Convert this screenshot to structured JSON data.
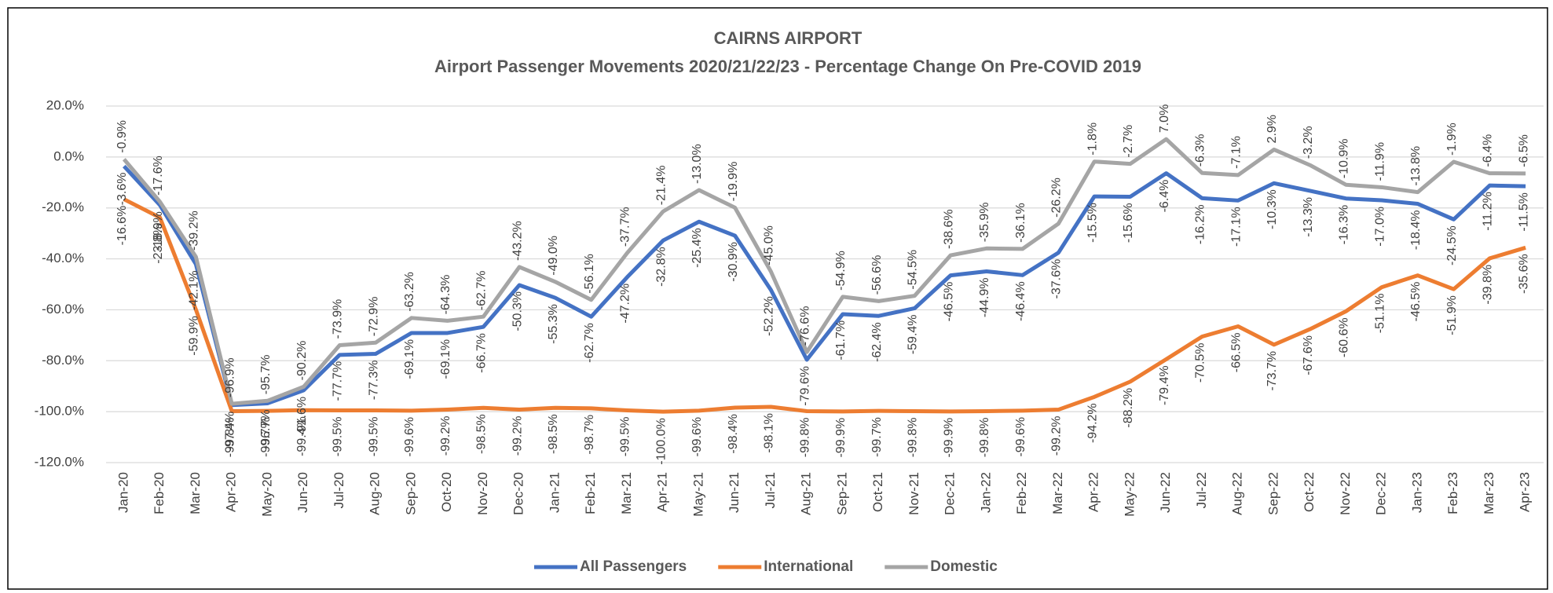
{
  "chart_data": {
    "type": "line",
    "title": "CAIRNS AIRPORT",
    "subtitle": "Airport Passenger Movements 2020/21/22/23 - Percentage Change On Pre-COVID 2019",
    "categories": [
      "Jan-20",
      "Feb-20",
      "Mar-20",
      "Apr-20",
      "May-20",
      "Jun-20",
      "Jul-20",
      "Aug-20",
      "Sep-20",
      "Oct-20",
      "Nov-20",
      "Dec-20",
      "Jan-21",
      "Feb-21",
      "Mar-21",
      "Apr-21",
      "May-21",
      "Jun-21",
      "Jul-21",
      "Aug-21",
      "Sep-21",
      "Oct-21",
      "Nov-21",
      "Dec-21",
      "Jan-22",
      "Feb-22",
      "Mar-22",
      "Apr-22",
      "May-22",
      "Jun-22",
      "Jul-22",
      "Aug-22",
      "Sep-22",
      "Oct-22",
      "Nov-22",
      "Dec-22",
      "Jan-23",
      "Feb-23",
      "Mar-23",
      "Apr-23"
    ],
    "series": [
      {
        "name": "All Passengers",
        "color": "#4472c4",
        "values": [
          -3.6,
          -18.9,
          -42.1,
          -97.4,
          -96.7,
          -91.6,
          -77.7,
          -77.3,
          -69.1,
          -69.1,
          -66.7,
          -50.3,
          -55.3,
          -62.7,
          -47.2,
          -32.8,
          -25.4,
          -30.9,
          -52.2,
          -79.6,
          -61.7,
          -62.4,
          -59.4,
          -46.5,
          -44.9,
          -46.4,
          -37.6,
          -15.5,
          -15.6,
          -6.4,
          -16.2,
          -17.1,
          -10.3,
          -13.3,
          -16.3,
          -17.0,
          -18.4,
          -24.5,
          -11.2,
          -11.5
        ],
        "value_labels": [
          "-3.6%",
          "-18.9%",
          "-42.1%",
          "-97.4%",
          "-96.7%",
          "-91.6%",
          "-77.7%",
          "-77.3%",
          "-69.1%",
          "-69.1%",
          "-66.7%",
          "-50.3%",
          "-55.3%",
          "-62.7%",
          "-47.2%",
          "-32.8%",
          "-25.4%",
          "-30.9%",
          "-52.2%",
          "-79.6%",
          "-61.7%",
          "-62.4%",
          "-59.4%",
          "-46.5%",
          "-44.9%",
          "-46.4%",
          "-37.6%",
          "-15.5%",
          "-15.6%",
          "-6.4%",
          "-16.2%",
          "-17.1%",
          "-10.3%",
          "-13.3%",
          "-16.3%",
          "-17.0%",
          "-18.4%",
          "-24.5%",
          "-11.2%",
          "-11.5%"
        ]
      },
      {
        "name": "International",
        "color": "#ed7d31",
        "values": [
          -16.6,
          -23.8,
          -59.9,
          -99.8,
          -99.7,
          -99.4,
          -99.5,
          -99.5,
          -99.6,
          -99.2,
          -98.5,
          -99.2,
          -98.5,
          -98.7,
          -99.5,
          -100.0,
          -99.6,
          -98.4,
          -98.1,
          -99.8,
          -99.9,
          -99.7,
          -99.8,
          -99.9,
          -99.8,
          -99.6,
          -99.2,
          -94.2,
          -88.2,
          -79.4,
          -70.5,
          -66.5,
          -73.7,
          -67.6,
          -60.6,
          -51.1,
          -46.5,
          -51.9,
          -39.8,
          -35.6
        ],
        "value_labels": [
          "-16.6%",
          "-23.8%",
          "-59.9%",
          "-99.8%",
          "-99.7%",
          "-99.4%",
          "-99.5%",
          "-99.5%",
          "-99.6%",
          "-99.2%",
          "-98.5%",
          "-99.2%",
          "-98.5%",
          "-98.7%",
          "-99.5%",
          "-100.0%",
          "-99.6%",
          "-98.4%",
          "-98.1%",
          "-99.8%",
          "-99.9%",
          "-99.7%",
          "-99.8%",
          "-99.9%",
          "-99.8%",
          "-99.6%",
          "-99.2%",
          "-94.2%",
          "-88.2%",
          "-79.4%",
          "-70.5%",
          "-66.5%",
          "-73.7%",
          "-67.6%",
          "-60.6%",
          "-51.1%",
          "-46.5%",
          "-51.9%",
          "-39.8%",
          "-35.6%"
        ]
      },
      {
        "name": "Domestic",
        "color": "#a5a5a5",
        "values": [
          -0.9,
          -17.6,
          -39.2,
          -96.9,
          -95.7,
          -90.2,
          -73.9,
          -72.9,
          -63.2,
          -64.3,
          -62.7,
          -43.2,
          -49.0,
          -56.1,
          -37.7,
          -21.4,
          -13.0,
          -19.9,
          -45.0,
          -76.6,
          -54.9,
          -56.6,
          -54.5,
          -38.6,
          -35.9,
          -36.1,
          -26.2,
          -1.8,
          -2.7,
          7.0,
          -6.3,
          -7.1,
          2.9,
          -3.2,
          -10.9,
          -11.9,
          -13.8,
          -1.9,
          -6.4,
          -6.5
        ],
        "value_labels": [
          "-0.9%",
          "-17.6%",
          "-39.2%",
          "-96.9%",
          "-95.7%",
          "-90.2%",
          "-73.9%",
          "-72.9%",
          "-63.2%",
          "-64.3%",
          "-62.7%",
          "-43.2%",
          "-49.0%",
          "-56.1%",
          "-37.7%",
          "-21.4%",
          "-13.0%",
          "-19.9%",
          "-45.0%",
          "-76.6%",
          "-54.9%",
          "-56.6%",
          "-54.5%",
          "-38.6%",
          "-35.9%",
          "-36.1%",
          "-26.2%",
          "-1.8%",
          "-2.7%",
          "7.0%",
          "-6.3%",
          "-7.1%",
          "2.9%",
          "-3.2%",
          "-10.9%",
          "-11.9%",
          "-13.8%",
          "-1.9%",
          "-6.4%",
          "-6.5%"
        ]
      }
    ],
    "ylim": [
      -120,
      20
    ],
    "yticks": [
      {
        "value": 20,
        "label": "20.0%"
      },
      {
        "value": 0,
        "label": "0.0%"
      },
      {
        "value": -20,
        "label": "-20.0%"
      },
      {
        "value": -40,
        "label": "-40.0%"
      },
      {
        "value": -60,
        "label": "-60.0%"
      },
      {
        "value": -80,
        "label": "-80.0%"
      },
      {
        "value": -100,
        "label": "-100.0%"
      },
      {
        "value": -120,
        "label": "-120.0%"
      }
    ],
    "grid": true,
    "legend": "bottom"
  }
}
